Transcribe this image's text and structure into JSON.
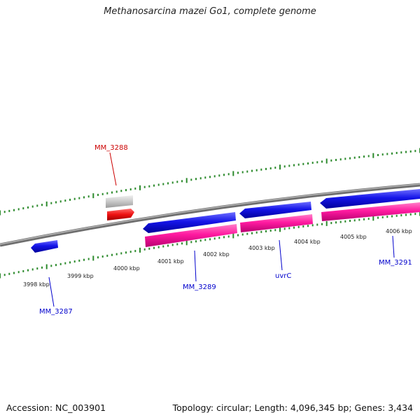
{
  "title": "Methanosarcina mazei Go1, complete genome",
  "footer": {
    "accession": "Accession: NC_003901",
    "summary": "Topology: circular; Length: 4,096,345 bp; Genes: 3,434"
  },
  "colors": {
    "backbone": "#808080",
    "ticks": "#2e8b2e",
    "cds_forward": "#0000e0",
    "cds_reverse": "#1a1ae0",
    "rna": "#ff1493",
    "gene_gray": "#c8c8c8",
    "gene_red": "#ee1111",
    "label_blue": "#0000cc",
    "label_red": "#cc0000"
  },
  "scale": {
    "unit": "kbp",
    "labels": [
      "3998 kbp",
      "3999 kbp",
      "4000 kbp",
      "4001 kbp",
      "4002 kbp",
      "4003 kbp",
      "4004 kbp",
      "4005 kbp",
      "4006 kbp"
    ]
  },
  "genes": [
    {
      "name": "MM_3287",
      "color": "label_blue"
    },
    {
      "name": "MM_3288",
      "color": "label_red"
    },
    {
      "name": "MM_3289",
      "color": "label_blue"
    },
    {
      "name": "uvrC",
      "color": "label_blue"
    },
    {
      "name": "MM_3291",
      "color": "label_blue"
    }
  ]
}
